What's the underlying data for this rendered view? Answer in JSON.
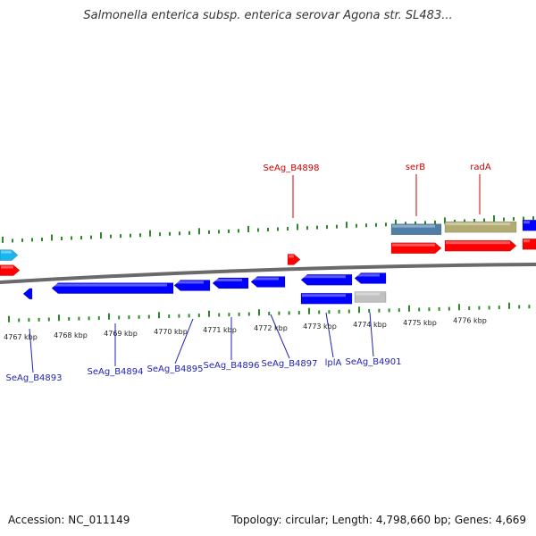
{
  "title": "Salmonella enterica subsp. enterica serovar Agona str. SL483...",
  "footer": {
    "accession": "Accession: NC_011149",
    "topology": "Topology: circular; Length: 4,798,660 bp; Genes: 4,669"
  },
  "colors": {
    "top_label": "#d00000",
    "bottom_label": "#1f1fb8",
    "tick": "#2a8a2a",
    "backbone": "#6a6a6a",
    "forward_gene": "#ff0000",
    "reverse_gene": "#0000ff",
    "cyan_gene": "#19b5ee",
    "steelblue_feature": "#4f7fa8",
    "khaki_feature": "#b2ac72",
    "gray_gene": "#c0c0c0"
  },
  "top_labels": [
    {
      "text": "SeAg_B4898"
    },
    {
      "text": "serB"
    },
    {
      "text": "radA"
    }
  ],
  "bottom_labels": [
    {
      "text": "SeAg_B4893"
    },
    {
      "text": "SeAg_B4894"
    },
    {
      "text": "SeAg_B4895"
    },
    {
      "text": "SeAg_B4896"
    },
    {
      "text": "SeAg_B4897"
    },
    {
      "text": "lplA"
    },
    {
      "text": "SeAg_B4901"
    }
  ],
  "kbp_labels": [
    "4767 kbp",
    "4768 kbp",
    "4769 kbp",
    "4770 kbp",
    "4771 kbp",
    "4772 kbp",
    "4773 kbp",
    "4774 kbp",
    "4775 kbp",
    "4776 kbp"
  ]
}
